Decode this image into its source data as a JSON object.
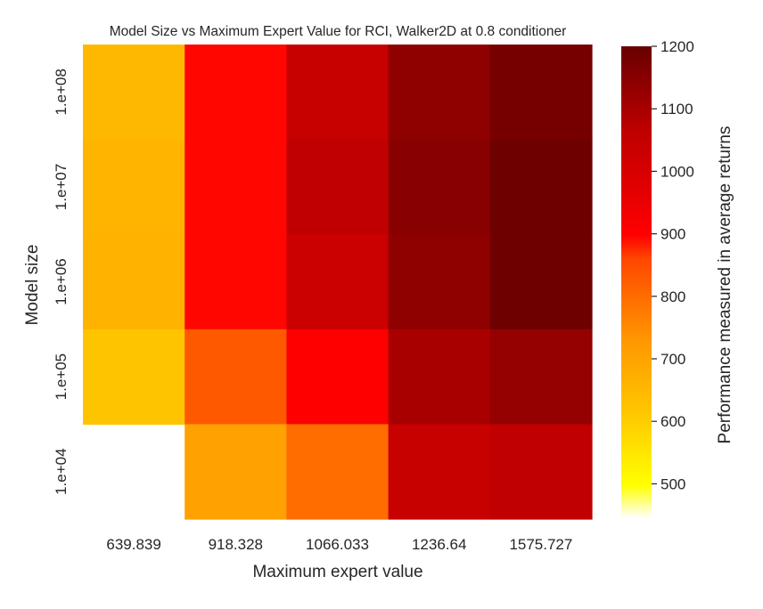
{
  "chart_data": {
    "type": "heatmap",
    "title": "Model Size vs Maximum Expert Value for RCI, Walker2D at 0.8 conditioner",
    "xlabel": "Maximum expert value",
    "ylabel": "Model size",
    "x_categories": [
      "639.839",
      "918.328",
      "1066.033",
      "1236.64",
      "1575.727"
    ],
    "y_categories": [
      "1.e+08",
      "1.e+07",
      "1.e+06",
      "1.e+05",
      "1.e+04"
    ],
    "values": [
      [
        650,
        895,
        1040,
        1140,
        1180
      ],
      [
        660,
        895,
        1060,
        1150,
        1190
      ],
      [
        665,
        895,
        1030,
        1140,
        1190
      ],
      [
        620,
        830,
        900,
        1100,
        1130
      ],
      [
        null,
        705,
        800,
        1040,
        1060
      ]
    ],
    "colorbar": {
      "label": "Performance measured in average returns",
      "range": [
        445,
        1200
      ],
      "ticks": [
        "500",
        "600",
        "700",
        "800",
        "900",
        "1000",
        "1100",
        "1200"
      ],
      "colormap": "hot_r"
    }
  }
}
